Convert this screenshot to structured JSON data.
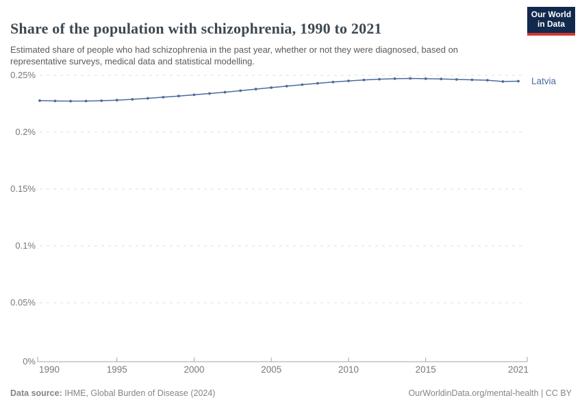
{
  "header": {
    "title": "Share of the population with schizophrenia, 1990 to 2021",
    "subtitle": "Estimated share of people who had schizophrenia in the past year, whether or not they were diagnosed, based on representative surveys, medical data and statistical modelling."
  },
  "logo": {
    "line1": "Our World",
    "line2": "in Data",
    "bg_color": "#12294d",
    "accent_color": "#d13832"
  },
  "chart_data": {
    "type": "line",
    "title": "Share of the population with schizophrenia, 1990 to 2021",
    "x": [
      1990,
      1991,
      1992,
      1993,
      1994,
      1995,
      1996,
      1997,
      1998,
      1999,
      2000,
      2001,
      2002,
      2003,
      2004,
      2005,
      2006,
      2007,
      2008,
      2009,
      2010,
      2011,
      2012,
      2013,
      2014,
      2015,
      2016,
      2017,
      2018,
      2019,
      2020,
      2021
    ],
    "series": [
      {
        "name": "Latvia",
        "color": "#4c6a9c",
        "values": [
          0.2278,
          0.2275,
          0.2273,
          0.2274,
          0.2277,
          0.2282,
          0.2289,
          0.2298,
          0.2308,
          0.2318,
          0.2329,
          0.234,
          0.2352,
          0.2365,
          0.2379,
          0.2392,
          0.2405,
          0.2418,
          0.243,
          0.2441,
          0.2451,
          0.2459,
          0.2466,
          0.2471,
          0.2473,
          0.2471,
          0.2468,
          0.2464,
          0.2461,
          0.2457,
          0.2446,
          0.2449
        ]
      }
    ],
    "unit": "%",
    "ylim": [
      0,
      0.25
    ],
    "yticks": [
      {
        "value": 0,
        "label": "0%"
      },
      {
        "value": 0.05,
        "label": "0.05%"
      },
      {
        "value": 0.1,
        "label": "0.1%"
      },
      {
        "value": 0.15,
        "label": "0.15%"
      },
      {
        "value": 0.2,
        "label": "0.2%"
      },
      {
        "value": 0.25,
        "label": "0.25%"
      }
    ],
    "xticks": [
      1990,
      1995,
      2000,
      2005,
      2010,
      2015,
      2021
    ],
    "grid": true,
    "legend_position": "end-of-line-label",
    "colors": {
      "gridline": "#dcdcdc",
      "axis": "#a3a3a3",
      "tick_label": "#787878"
    }
  },
  "footer": {
    "datasource_label": "Data source:",
    "datasource_value": "IHME, Global Burden of Disease (2024)",
    "link": "OurWorldinData.org/mental-health",
    "license": "| CC BY"
  }
}
